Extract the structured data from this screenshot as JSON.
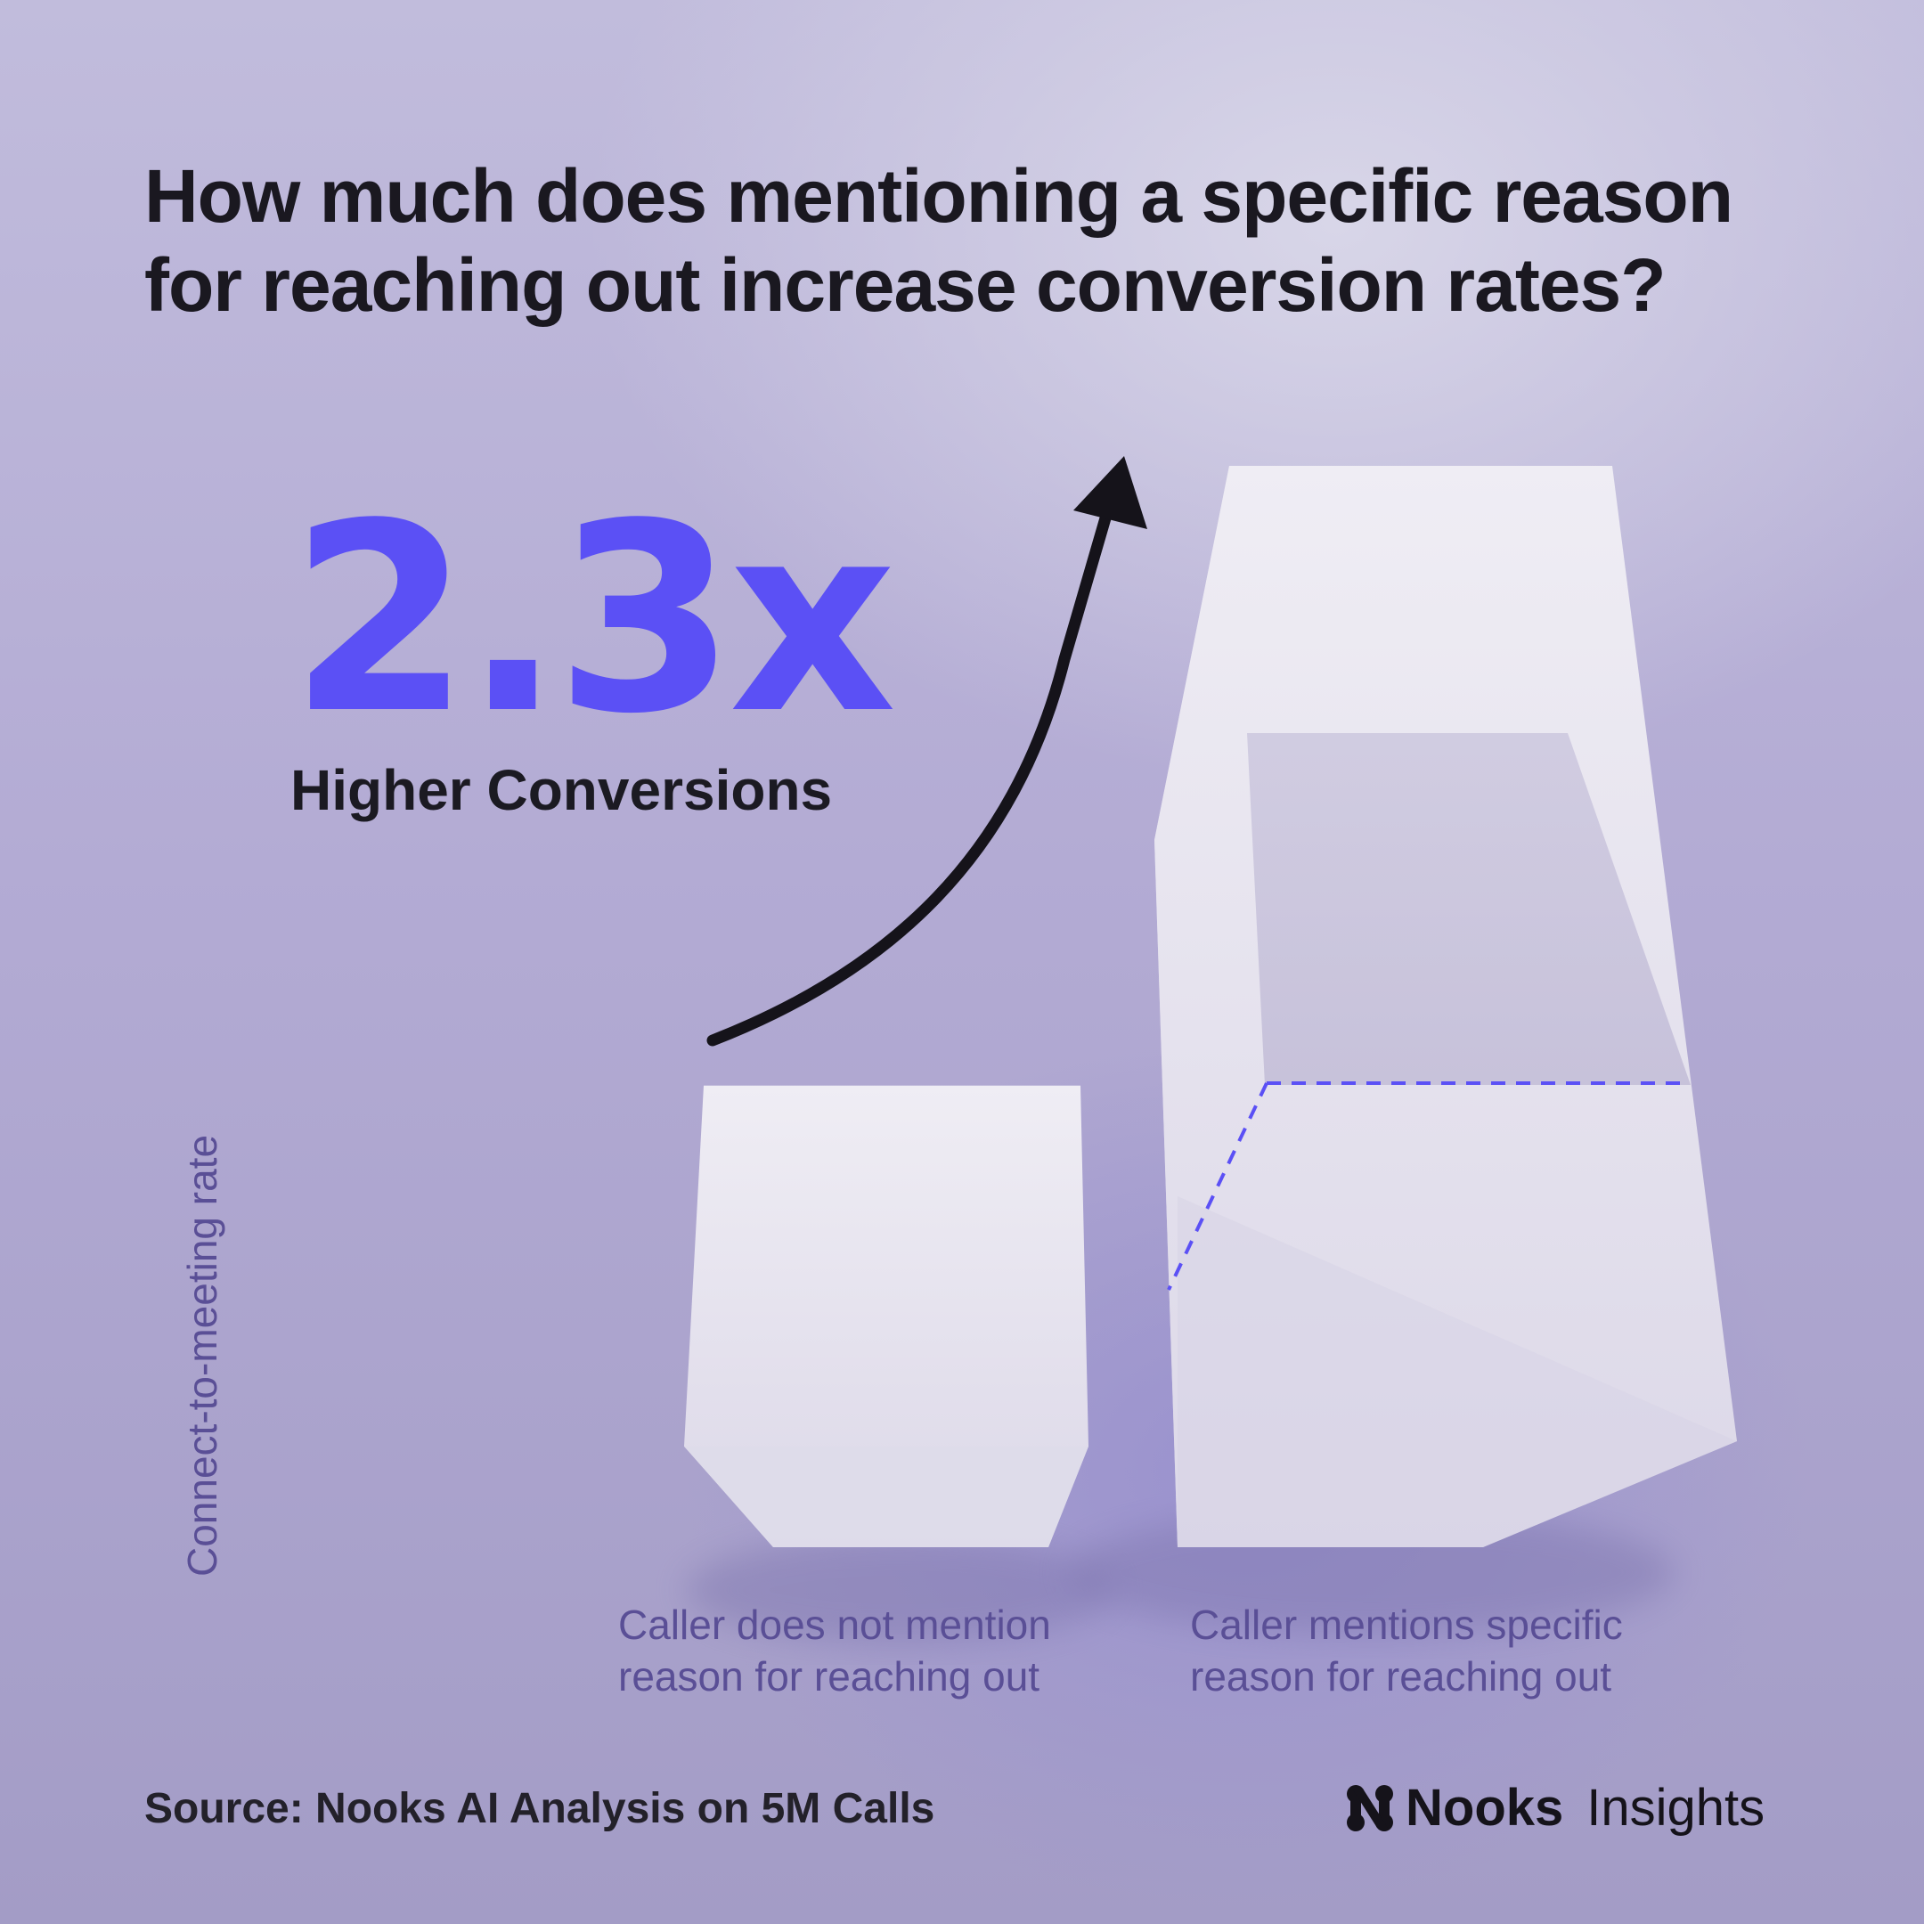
{
  "title": "How much does mentioning a specific reason for reaching out increase conversion rates?",
  "highlight": {
    "value": "2.3x",
    "caption": "Higher Conversions"
  },
  "source": "Source: Nooks AI Analysis on 5M Calls",
  "brand": {
    "name": "Nooks",
    "suffix": "Insights",
    "logo_icon": "nooks-logo-icon"
  },
  "colors": {
    "accent": "#5b50f5",
    "text_dark": "#1a1820",
    "label": "#5a4f96",
    "block": "#e6e3ef"
  },
  "chart_data": {
    "type": "bar",
    "title": "How much does mentioning a specific reason for reaching out increase conversion rates?",
    "ylabel": "Connect-to-meeting rate",
    "xlabel": "",
    "categories": [
      "Caller does not mention reason for reaching out",
      "Caller mentions specific reason for reaching out"
    ],
    "values": [
      1,
      2.3
    ],
    "annotation": "2.3x Higher Conversions",
    "grid": false,
    "legend": "none"
  }
}
